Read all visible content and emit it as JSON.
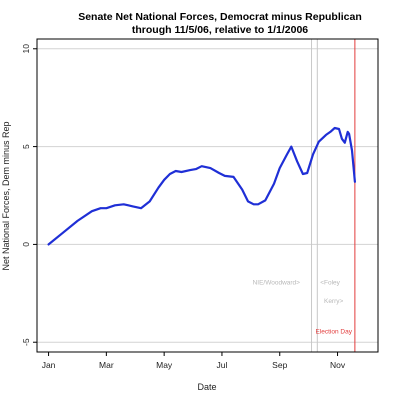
{
  "chart_data": {
    "type": "line",
    "title": "Senate Net National Forces, Democrat minus Republican",
    "subtitle": "through 11/5/06, relative to 1/1/2006",
    "xlabel": "Date",
    "ylabel": "Net National Forces, Dem minus Rep",
    "x_unit": "month of 2006",
    "xlim": [
      -0.4,
      11.4
    ],
    "ylim": [
      -5.5,
      10.5
    ],
    "x_ticks": [
      {
        "value": 0,
        "label": "Jan"
      },
      {
        "value": 2,
        "label": "Mar"
      },
      {
        "value": 4,
        "label": "May"
      },
      {
        "value": 6,
        "label": "Jul"
      },
      {
        "value": 8,
        "label": "Sep"
      },
      {
        "value": 10,
        "label": "Nov"
      }
    ],
    "y_ticks": [
      {
        "value": -5,
        "label": "-5"
      },
      {
        "value": 0,
        "label": "0"
      },
      {
        "value": 5,
        "label": "5"
      },
      {
        "value": 10,
        "label": "10"
      }
    ],
    "grid": true,
    "series": [
      {
        "color": "#1f2fd6",
        "x": [
          0,
          0.5,
          1.0,
          1.5,
          1.8,
          2.0,
          2.3,
          2.6,
          2.9,
          3.2,
          3.5,
          3.8,
          4.0,
          4.2,
          4.4,
          4.6,
          4.9,
          5.1,
          5.3,
          5.6,
          5.9,
          6.1,
          6.4,
          6.7,
          6.9,
          7.1,
          7.25,
          7.5,
          7.8,
          8.0,
          8.25,
          8.4,
          8.6,
          8.8,
          8.95,
          9.15,
          9.35,
          9.6,
          9.75,
          9.9,
          10.05,
          10.15,
          10.25,
          10.35,
          10.4,
          10.5,
          10.6
        ],
        "y": [
          0,
          0.6,
          1.2,
          1.7,
          1.85,
          1.85,
          2.0,
          2.05,
          1.95,
          1.85,
          2.2,
          2.9,
          3.3,
          3.6,
          3.75,
          3.7,
          3.8,
          3.85,
          4.0,
          3.9,
          3.65,
          3.5,
          3.45,
          2.8,
          2.2,
          2.05,
          2.05,
          2.25,
          3.1,
          3.9,
          4.6,
          5.0,
          4.25,
          3.6,
          3.65,
          4.6,
          5.25,
          5.6,
          5.75,
          5.95,
          5.9,
          5.4,
          5.2,
          5.75,
          5.65,
          4.8,
          3.2
        ]
      }
    ],
    "vertical_lines": [
      {
        "x": 9.1,
        "color": "#c8c8c8"
      },
      {
        "x": 9.3,
        "color": "#c8c8c8"
      },
      {
        "x": 10.6,
        "color": "#e23b3b"
      }
    ],
    "annotations": [
      {
        "text": "NIE/Woodward>",
        "x": 8.7,
        "y": -2.05,
        "color": "#b8b8b8",
        "anchor": "end"
      },
      {
        "text": "<Foley",
        "x": 9.4,
        "y": -2.05,
        "color": "#b8b8b8",
        "anchor": "start"
      },
      {
        "text": "Kerry>",
        "x": 10.2,
        "y": -3.0,
        "color": "#b8b8b8",
        "anchor": "end"
      },
      {
        "text": "Election Day",
        "x": 10.5,
        "y": -4.55,
        "color": "#e23b3b",
        "anchor": "end"
      }
    ]
  }
}
